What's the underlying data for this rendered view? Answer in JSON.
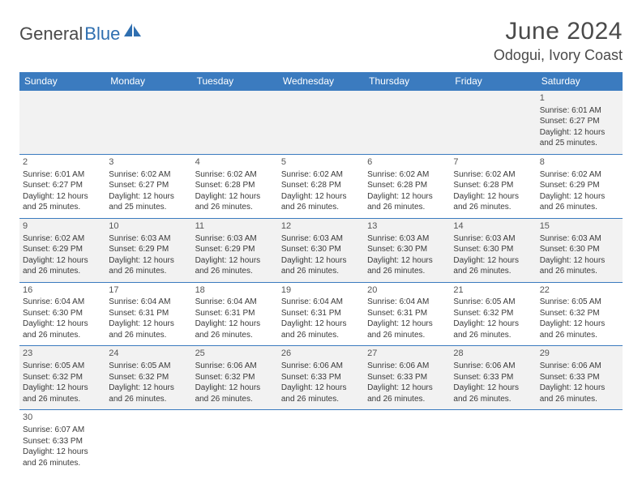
{
  "logo": {
    "text1": "General",
    "text2": "Blue"
  },
  "title": "June 2024",
  "location": "Odogui, Ivory Coast",
  "colors": {
    "header_bg": "#3b7bbf",
    "header_text": "#ffffff",
    "alt_row_bg": "#f2f2f2",
    "row_bg": "#ffffff",
    "border": "#3b7bbf",
    "text": "#3a3a3a",
    "logo_blue": "#2f6fb0",
    "logo_gray": "#4a4a4a"
  },
  "day_headers": [
    "Sunday",
    "Monday",
    "Tuesday",
    "Wednesday",
    "Thursday",
    "Friday",
    "Saturday"
  ],
  "weeks": [
    [
      null,
      null,
      null,
      null,
      null,
      null,
      {
        "n": "1",
        "sr": "Sunrise: 6:01 AM",
        "ss": "Sunset: 6:27 PM",
        "d1": "Daylight: 12 hours",
        "d2": "and 25 minutes."
      }
    ],
    [
      {
        "n": "2",
        "sr": "Sunrise: 6:01 AM",
        "ss": "Sunset: 6:27 PM",
        "d1": "Daylight: 12 hours",
        "d2": "and 25 minutes."
      },
      {
        "n": "3",
        "sr": "Sunrise: 6:02 AM",
        "ss": "Sunset: 6:27 PM",
        "d1": "Daylight: 12 hours",
        "d2": "and 25 minutes."
      },
      {
        "n": "4",
        "sr": "Sunrise: 6:02 AM",
        "ss": "Sunset: 6:28 PM",
        "d1": "Daylight: 12 hours",
        "d2": "and 26 minutes."
      },
      {
        "n": "5",
        "sr": "Sunrise: 6:02 AM",
        "ss": "Sunset: 6:28 PM",
        "d1": "Daylight: 12 hours",
        "d2": "and 26 minutes."
      },
      {
        "n": "6",
        "sr": "Sunrise: 6:02 AM",
        "ss": "Sunset: 6:28 PM",
        "d1": "Daylight: 12 hours",
        "d2": "and 26 minutes."
      },
      {
        "n": "7",
        "sr": "Sunrise: 6:02 AM",
        "ss": "Sunset: 6:28 PM",
        "d1": "Daylight: 12 hours",
        "d2": "and 26 minutes."
      },
      {
        "n": "8",
        "sr": "Sunrise: 6:02 AM",
        "ss": "Sunset: 6:29 PM",
        "d1": "Daylight: 12 hours",
        "d2": "and 26 minutes."
      }
    ],
    [
      {
        "n": "9",
        "sr": "Sunrise: 6:02 AM",
        "ss": "Sunset: 6:29 PM",
        "d1": "Daylight: 12 hours",
        "d2": "and 26 minutes."
      },
      {
        "n": "10",
        "sr": "Sunrise: 6:03 AM",
        "ss": "Sunset: 6:29 PM",
        "d1": "Daylight: 12 hours",
        "d2": "and 26 minutes."
      },
      {
        "n": "11",
        "sr": "Sunrise: 6:03 AM",
        "ss": "Sunset: 6:29 PM",
        "d1": "Daylight: 12 hours",
        "d2": "and 26 minutes."
      },
      {
        "n": "12",
        "sr": "Sunrise: 6:03 AM",
        "ss": "Sunset: 6:30 PM",
        "d1": "Daylight: 12 hours",
        "d2": "and 26 minutes."
      },
      {
        "n": "13",
        "sr": "Sunrise: 6:03 AM",
        "ss": "Sunset: 6:30 PM",
        "d1": "Daylight: 12 hours",
        "d2": "and 26 minutes."
      },
      {
        "n": "14",
        "sr": "Sunrise: 6:03 AM",
        "ss": "Sunset: 6:30 PM",
        "d1": "Daylight: 12 hours",
        "d2": "and 26 minutes."
      },
      {
        "n": "15",
        "sr": "Sunrise: 6:03 AM",
        "ss": "Sunset: 6:30 PM",
        "d1": "Daylight: 12 hours",
        "d2": "and 26 minutes."
      }
    ],
    [
      {
        "n": "16",
        "sr": "Sunrise: 6:04 AM",
        "ss": "Sunset: 6:30 PM",
        "d1": "Daylight: 12 hours",
        "d2": "and 26 minutes."
      },
      {
        "n": "17",
        "sr": "Sunrise: 6:04 AM",
        "ss": "Sunset: 6:31 PM",
        "d1": "Daylight: 12 hours",
        "d2": "and 26 minutes."
      },
      {
        "n": "18",
        "sr": "Sunrise: 6:04 AM",
        "ss": "Sunset: 6:31 PM",
        "d1": "Daylight: 12 hours",
        "d2": "and 26 minutes."
      },
      {
        "n": "19",
        "sr": "Sunrise: 6:04 AM",
        "ss": "Sunset: 6:31 PM",
        "d1": "Daylight: 12 hours",
        "d2": "and 26 minutes."
      },
      {
        "n": "20",
        "sr": "Sunrise: 6:04 AM",
        "ss": "Sunset: 6:31 PM",
        "d1": "Daylight: 12 hours",
        "d2": "and 26 minutes."
      },
      {
        "n": "21",
        "sr": "Sunrise: 6:05 AM",
        "ss": "Sunset: 6:32 PM",
        "d1": "Daylight: 12 hours",
        "d2": "and 26 minutes."
      },
      {
        "n": "22",
        "sr": "Sunrise: 6:05 AM",
        "ss": "Sunset: 6:32 PM",
        "d1": "Daylight: 12 hours",
        "d2": "and 26 minutes."
      }
    ],
    [
      {
        "n": "23",
        "sr": "Sunrise: 6:05 AM",
        "ss": "Sunset: 6:32 PM",
        "d1": "Daylight: 12 hours",
        "d2": "and 26 minutes."
      },
      {
        "n": "24",
        "sr": "Sunrise: 6:05 AM",
        "ss": "Sunset: 6:32 PM",
        "d1": "Daylight: 12 hours",
        "d2": "and 26 minutes."
      },
      {
        "n": "25",
        "sr": "Sunrise: 6:06 AM",
        "ss": "Sunset: 6:32 PM",
        "d1": "Daylight: 12 hours",
        "d2": "and 26 minutes."
      },
      {
        "n": "26",
        "sr": "Sunrise: 6:06 AM",
        "ss": "Sunset: 6:33 PM",
        "d1": "Daylight: 12 hours",
        "d2": "and 26 minutes."
      },
      {
        "n": "27",
        "sr": "Sunrise: 6:06 AM",
        "ss": "Sunset: 6:33 PM",
        "d1": "Daylight: 12 hours",
        "d2": "and 26 minutes."
      },
      {
        "n": "28",
        "sr": "Sunrise: 6:06 AM",
        "ss": "Sunset: 6:33 PM",
        "d1": "Daylight: 12 hours",
        "d2": "and 26 minutes."
      },
      {
        "n": "29",
        "sr": "Sunrise: 6:06 AM",
        "ss": "Sunset: 6:33 PM",
        "d1": "Daylight: 12 hours",
        "d2": "and 26 minutes."
      }
    ],
    [
      {
        "n": "30",
        "sr": "Sunrise: 6:07 AM",
        "ss": "Sunset: 6:33 PM",
        "d1": "Daylight: 12 hours",
        "d2": "and 26 minutes."
      },
      null,
      null,
      null,
      null,
      null,
      null
    ]
  ]
}
